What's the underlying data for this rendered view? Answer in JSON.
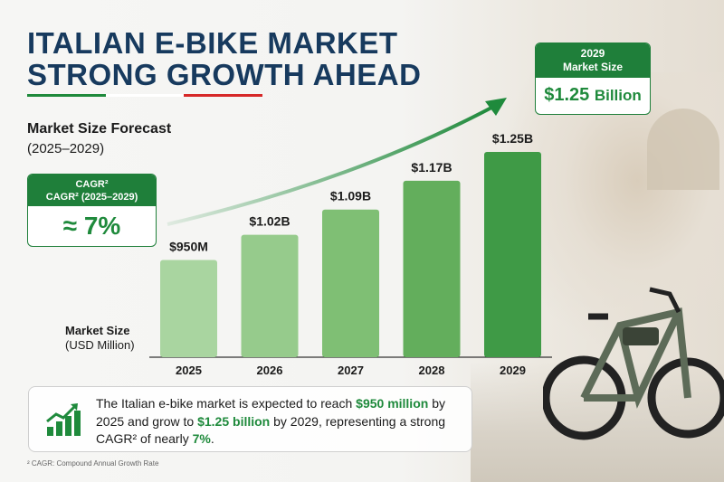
{
  "title": [
    "ITALIAN E-BIKE MARKET",
    "STRONG GROWTH AHEAD"
  ],
  "colors": {
    "accent": "#1f7f3a",
    "title": "#173a5e",
    "flag_green": "#1f8a3c",
    "flag_white": "#ffffff",
    "flag_red": "#d62828"
  },
  "subtitle": "Market Size Forecast",
  "subtitle_range": "(2025–2029)",
  "cagr_box": {
    "line1": "CAGR²",
    "line2": "CAGR² (2025–2029)",
    "value": "≈ 7%"
  },
  "axis_label": {
    "line1": "Market Size",
    "line2": "(USD Million)"
  },
  "highlight_box": {
    "year": "2029",
    "label": "Market Size",
    "value": "$1.25",
    "unit": "Billion"
  },
  "chart_data": {
    "type": "bar",
    "categories": [
      "2025",
      "2026",
      "2027",
      "2028",
      "2029"
    ],
    "values": [
      950,
      1020,
      1090,
      1170,
      1250
    ],
    "data_labels": [
      "$950M",
      "$1.02B",
      "$1.09B",
      "$1.17B",
      "$1.25B"
    ],
    "ylabel": "Market Size (USD Million)",
    "ylim": [
      680,
      1260
    ],
    "grid": false,
    "trend_arrow": true,
    "bar_colors": [
      "#a9d5a0",
      "#96cb8c",
      "#7fbf74",
      "#63ae5c",
      "#3f9a46"
    ]
  },
  "info": {
    "p1": "The Italian e-bike market is expected to reach ",
    "h1": "$950 million",
    "p2": " by 2025 and grow to ",
    "h2": "$1.25 billion",
    "p3": " by 2029, representing a strong CAGR² of nearly ",
    "h3": "7%",
    "p4": ".",
    "icon": "growth-chart-icon"
  },
  "footnote": "² CAGR: Compound Annual Growth Rate"
}
